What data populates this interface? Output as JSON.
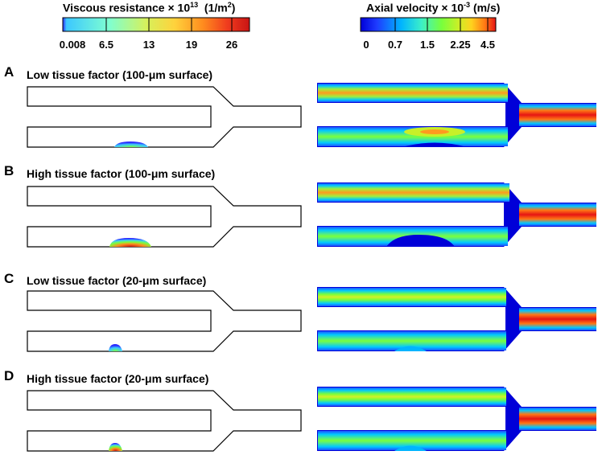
{
  "colorbar_left": {
    "title_prefix": "Viscous resistance × 10",
    "title_exp": "13",
    "title_unit_prefix": "(1/m",
    "title_unit_exp": "2",
    "title_unit_suffix": ")",
    "ticks": [
      "0.008",
      "6.5",
      "13",
      "19",
      "26"
    ]
  },
  "colorbar_right": {
    "title_prefix": "Axial velocity × 10",
    "title_exp": "-3",
    "title_unit": "(m/s)",
    "ticks": [
      "0",
      "0.7",
      "1.5",
      "2.25",
      "4.5"
    ]
  },
  "panels": [
    {
      "letter": "A",
      "title": "Low tissue factor (100-μm surface)"
    },
    {
      "letter": "B",
      "title": "High tissue factor (100-μm surface)"
    },
    {
      "letter": "C",
      "title": "Low tissue factor (20-μm surface)"
    },
    {
      "letter": "D",
      "title": "High tissue factor (20-μm surface)"
    }
  ],
  "colors": {
    "resistance_scale": [
      "#2a2aff",
      "#3cc8ff",
      "#7fffd0",
      "#d7f05a",
      "#ffd23c",
      "#ff8c1e",
      "#f03c1e",
      "#c81414"
    ],
    "velocity_scale": [
      "#0000d8",
      "#1e3cff",
      "#00b4ff",
      "#3cf0c8",
      "#78ff3c",
      "#c8f028",
      "#ffd21e",
      "#ff7814",
      "#e61414"
    ]
  }
}
